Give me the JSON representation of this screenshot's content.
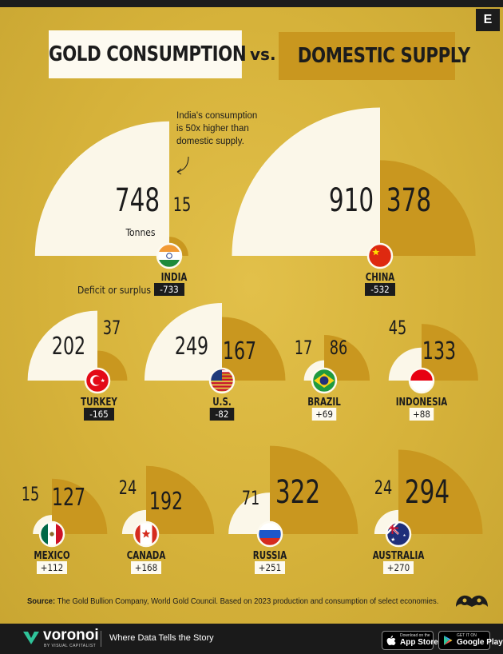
{
  "header": {
    "title_left": "GOLD CONSUMPTION",
    "vs": "vs.",
    "title_right": "DOMESTIC SUPPLY",
    "badge": "E"
  },
  "chart_data": {
    "type": "quarter-circle area comparison",
    "unit_label": "Tonnes",
    "legend_deficit": "Deficit or surplus",
    "annotation": "India's consumption is 50x higher than domestic supply.",
    "series": [
      {
        "name": "Gold consumption"
      },
      {
        "name": "Domestic supply"
      }
    ],
    "countries": [
      {
        "name": "INDIA",
        "consumption": 748,
        "supply": 15,
        "balance": "-733",
        "flag": "india"
      },
      {
        "name": "CHINA",
        "consumption": 910,
        "supply": 378,
        "balance": "-532",
        "flag": "china"
      },
      {
        "name": "TURKEY",
        "consumption": 202,
        "supply": 37,
        "balance": "-165",
        "flag": "turkey"
      },
      {
        "name": "U.S.",
        "consumption": 249,
        "supply": 167,
        "balance": "-82",
        "flag": "us"
      },
      {
        "name": "BRAZIL",
        "consumption": 17,
        "supply": 86,
        "balance": "+69",
        "flag": "brazil"
      },
      {
        "name": "INDONESIA",
        "consumption": 45,
        "supply": 133,
        "balance": "+88",
        "flag": "indonesia"
      },
      {
        "name": "MEXICO",
        "consumption": 15,
        "supply": 127,
        "balance": "+112",
        "flag": "mexico"
      },
      {
        "name": "CANADA",
        "consumption": 24,
        "supply": 192,
        "balance": "+168",
        "flag": "canada"
      },
      {
        "name": "RUSSIA",
        "consumption": 71,
        "supply": 322,
        "balance": "+251",
        "flag": "russia"
      },
      {
        "name": "AUSTRALIA",
        "consumption": 24,
        "supply": 294,
        "balance": "+270",
        "flag": "australia"
      }
    ],
    "colors": {
      "consumption": "#fbf7e9",
      "supply": "#c9971f",
      "background": "#d8b43a",
      "deficit_bg": "#1c1c1c",
      "surplus_bg": "#fdfaf0"
    }
  },
  "source": {
    "label": "Source:",
    "text": "The Gold Bullion Company, World Gold Council.  Based on 2023 production and consumption of select economies."
  },
  "footer": {
    "brand": "voronoi",
    "brand_sub": "BY VISUAL CAPITALIST",
    "tagline": "Where Data Tells the Story",
    "appstore_small": "Download on the",
    "appstore": "App Store",
    "googleplay_small": "GET IT ON",
    "googleplay": "Google Play"
  }
}
